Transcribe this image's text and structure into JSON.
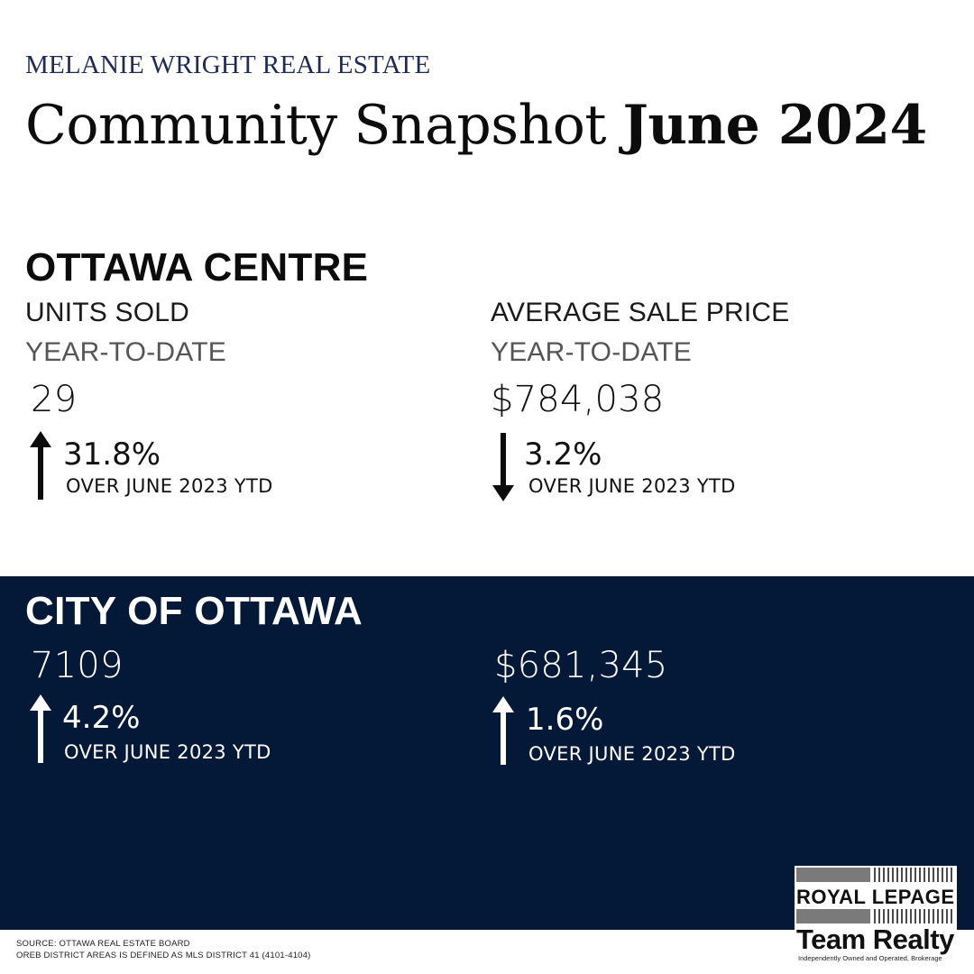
{
  "brand": "MELANIE WRIGHT REAL ESTATE",
  "title": {
    "prefix": "Community Snapshot ",
    "bold": "June 2024"
  },
  "ottawa_centre": {
    "heading": "OTTAWA CENTRE",
    "units": {
      "label": "UNITS SOLD",
      "period": "YEAR-TO-DATE",
      "value": "29",
      "change": "31.8%",
      "direction": "up",
      "note": "OVER JUNE 2023 YTD"
    },
    "price": {
      "label": "AVERAGE SALE PRICE",
      "period": "YEAR-TO-DATE",
      "value": "$784,038",
      "change": "3.2%",
      "direction": "down",
      "note": "OVER JUNE 2023 YTD"
    }
  },
  "city_of_ottawa": {
    "heading": "CITY OF OTTAWA",
    "units": {
      "value": "7109",
      "change": "4.2%",
      "direction": "up",
      "note": "OVER JUNE 2023 YTD"
    },
    "price": {
      "value": "$681,345",
      "change": "1.6%",
      "direction": "up",
      "note": "OVER JUNE 2023 YTD"
    }
  },
  "footer": {
    "source": "SOURCE: OTTAWA REAL ESTATE BOARD",
    "definition": "OREB DISTRICT AREAS IS DEFINED AS MLS DISTRICT 41 (4101-4104)"
  },
  "logo": {
    "line1": "ROYAL LEPAGE",
    "line2": "Team Realty",
    "tagline": "Independently Owned and Operated, Brokerage"
  },
  "colors": {
    "band": "#041838",
    "brand_text": "#1e2a5a"
  }
}
